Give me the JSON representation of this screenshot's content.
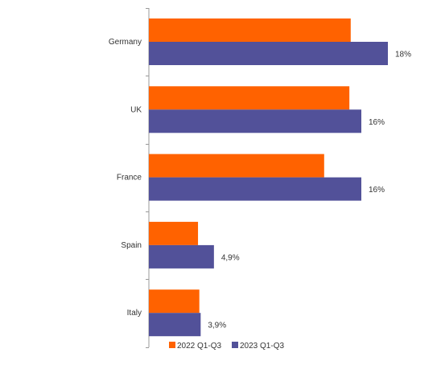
{
  "chart_data": {
    "type": "bar",
    "orientation": "horizontal",
    "categories": [
      "Germany",
      "UK",
      "France",
      "Spain",
      "Italy"
    ],
    "series": [
      {
        "name": "2022 Q1-Q3",
        "color": "#FF6200",
        "values": [
          15.2,
          15.1,
          13.2,
          3.7,
          3.8
        ],
        "labels": [
          "",
          "",
          "",
          "",
          ""
        ]
      },
      {
        "name": "2023 Q1-Q3",
        "color": "#525199",
        "values": [
          18,
          16,
          16,
          4.9,
          3.9
        ],
        "labels": [
          "18%",
          "16%",
          "16%",
          "4,9%",
          "3,9%"
        ]
      }
    ],
    "xlim": [
      0,
      20
    ],
    "grid": false,
    "legend_position": "bottom"
  }
}
